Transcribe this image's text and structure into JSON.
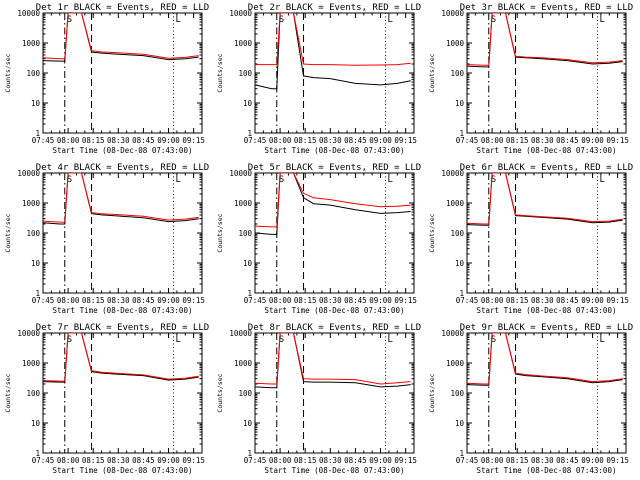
{
  "page": {
    "background": "#ffffff",
    "colors": {
      "events": "#000000",
      "lld": "#ff0000",
      "axes": "#000000"
    }
  },
  "chart_data": [
    {
      "type": "line",
      "title": "Det 1r BLACK = Events, RED = LLD",
      "xlabel": "Start Time (08-Dec-08 07:43:00)",
      "ylabel": "Counts/sec",
      "yscale": "log",
      "ylim": [
        1,
        10000
      ],
      "xlim": [
        "07:45",
        "09:20"
      ],
      "xticks": [
        "07:45",
        "08:00",
        "08:15",
        "08:30",
        "08:45",
        "09:00",
        "09:15"
      ],
      "yticks": [
        "1",
        "10",
        "100",
        "1000",
        "10000"
      ],
      "grid": false,
      "vlines": {
        "dashdot": "07:58",
        "dashed": "08:14",
        "dotted": "09:03"
      },
      "flags": [
        "S",
        "L"
      ],
      "x": [
        "07:45",
        "07:55",
        "07:58",
        "08:00",
        "08:04",
        "08:08",
        "08:14",
        "08:20",
        "08:30",
        "08:45",
        "09:00",
        "09:10",
        "09:18"
      ],
      "series": [
        {
          "name": "BLACK = Events",
          "color": "#000000",
          "values": [
            260,
            250,
            250,
            10000,
            10000,
            10000,
            500,
            460,
            420,
            380,
            280,
            300,
            340
          ]
        },
        {
          "name": "RED = LLD",
          "color": "#ff0000",
          "values": [
            320,
            300,
            300,
            10000,
            10000,
            10000,
            560,
            500,
            470,
            420,
            310,
            330,
            380
          ]
        }
      ]
    },
    {
      "type": "line",
      "title": "Det 2r BLACK = Events, RED = LLD",
      "xlabel": "Start Time (08-Dec-08 07:43:00)",
      "ylabel": "Counts/sec",
      "yscale": "log",
      "ylim": [
        1,
        10000
      ],
      "xlim": [
        "07:45",
        "09:20"
      ],
      "xticks": [
        "07:45",
        "08:00",
        "08:15",
        "08:30",
        "08:45",
        "09:00",
        "09:15"
      ],
      "yticks": [
        "1",
        "10",
        "100",
        "1000",
        "10000"
      ],
      "grid": false,
      "vlines": {
        "dashdot": "07:58",
        "dashed": "08:14",
        "dotted": "09:03"
      },
      "flags": [
        "S",
        "L"
      ],
      "x": [
        "07:45",
        "07:55",
        "07:58",
        "08:00",
        "08:04",
        "08:08",
        "08:14",
        "08:20",
        "08:30",
        "08:45",
        "09:00",
        "09:10",
        "09:18"
      ],
      "series": [
        {
          "name": "BLACK = Events",
          "color": "#000000",
          "values": [
            40,
            30,
            30,
            10000,
            10000,
            10000,
            80,
            70,
            65,
            45,
            40,
            45,
            55
          ]
        },
        {
          "name": "RED = LLD",
          "color": "#ff0000",
          "values": [
            190,
            190,
            190,
            10000,
            10000,
            10000,
            200,
            190,
            190,
            180,
            185,
            190,
            210
          ]
        }
      ]
    },
    {
      "type": "line",
      "title": "Det 3r BLACK = Events, RED = LLD",
      "xlabel": "Start Time (08-Dec-08 07:43:00)",
      "ylabel": "Counts/sec",
      "yscale": "log",
      "ylim": [
        1,
        10000
      ],
      "xlim": [
        "07:45",
        "09:20"
      ],
      "xticks": [
        "07:45",
        "08:00",
        "08:15",
        "08:30",
        "08:45",
        "09:00",
        "09:15"
      ],
      "yticks": [
        "1",
        "10",
        "100",
        "1000",
        "10000"
      ],
      "grid": false,
      "vlines": {
        "dashdot": "07:58",
        "dashed": "08:14",
        "dotted": "09:03"
      },
      "flags": [
        "S",
        "L"
      ],
      "x": [
        "07:45",
        "07:55",
        "07:58",
        "08:00",
        "08:04",
        "08:08",
        "08:14",
        "08:20",
        "08:30",
        "08:45",
        "09:00",
        "09:10",
        "09:18"
      ],
      "series": [
        {
          "name": "BLACK = Events",
          "color": "#000000",
          "values": [
            170,
            160,
            160,
            10000,
            10000,
            10000,
            340,
            320,
            300,
            260,
            200,
            210,
            240
          ]
        },
        {
          "name": "RED = LLD",
          "color": "#ff0000",
          "values": [
            190,
            180,
            180,
            10000,
            10000,
            10000,
            360,
            340,
            320,
            280,
            220,
            230,
            260
          ]
        }
      ]
    },
    {
      "type": "line",
      "title": "Det 4r BLACK = Events, RED = LLD",
      "xlabel": "Start Time (08-Dec-08 07:43:00)",
      "ylabel": "Counts/sec",
      "yscale": "log",
      "ylim": [
        1,
        10000
      ],
      "xlim": [
        "07:45",
        "09:20"
      ],
      "xticks": [
        "07:45",
        "08:00",
        "08:15",
        "08:30",
        "08:45",
        "09:00",
        "09:15"
      ],
      "yticks": [
        "1",
        "10",
        "100",
        "1000",
        "10000"
      ],
      "grid": false,
      "vlines": {
        "dashdot": "07:58",
        "dashed": "08:14",
        "dotted": "09:03"
      },
      "flags": [
        "S",
        "L"
      ],
      "x": [
        "07:45",
        "07:55",
        "07:58",
        "08:00",
        "08:04",
        "08:08",
        "08:14",
        "08:20",
        "08:30",
        "08:45",
        "09:00",
        "09:10",
        "09:18"
      ],
      "series": [
        {
          "name": "BLACK = Events",
          "color": "#000000",
          "values": [
            220,
            200,
            200,
            10000,
            10000,
            10000,
            440,
            400,
            370,
            320,
            240,
            260,
            300
          ]
        },
        {
          "name": "RED = LLD",
          "color": "#ff0000",
          "values": [
            250,
            230,
            230,
            10000,
            10000,
            10000,
            480,
            440,
            410,
            360,
            270,
            290,
            330
          ]
        }
      ]
    },
    {
      "type": "line",
      "title": "Det 5r BLACK = Events, RED = LLD",
      "xlabel": "Start Time (08-Dec-08 07:43:00)",
      "ylabel": "Counts/sec",
      "yscale": "log",
      "ylim": [
        1,
        10000
      ],
      "xlim": [
        "07:45",
        "09:20"
      ],
      "xticks": [
        "07:45",
        "08:00",
        "08:15",
        "08:30",
        "08:45",
        "09:00",
        "09:15"
      ],
      "yticks": [
        "1",
        "10",
        "100",
        "1000",
        "10000"
      ],
      "grid": false,
      "vlines": {
        "dashdot": "07:58",
        "dashed": "08:14",
        "dotted": "09:03"
      },
      "flags": [
        "S",
        "L"
      ],
      "x": [
        "07:45",
        "07:55",
        "07:58",
        "08:00",
        "08:04",
        "08:08",
        "08:14",
        "08:20",
        "08:30",
        "08:45",
        "09:00",
        "09:10",
        "09:18"
      ],
      "series": [
        {
          "name": "BLACK = Events",
          "color": "#000000",
          "values": [
            100,
            90,
            90,
            10000,
            10000,
            10000,
            1500,
            950,
            850,
            600,
            450,
            480,
            520
          ]
        },
        {
          "name": "RED = LLD",
          "color": "#ff0000",
          "values": [
            170,
            160,
            160,
            10000,
            10000,
            10000,
            2100,
            1500,
            1300,
            950,
            750,
            780,
            850
          ]
        }
      ]
    },
    {
      "type": "line",
      "title": "Det 6r BLACK = Events, RED = LLD",
      "xlabel": "Start Time (08-Dec-08 07:43:00)",
      "ylabel": "Counts/sec",
      "yscale": "log",
      "ylim": [
        1,
        10000
      ],
      "xlim": [
        "07:45",
        "09:20"
      ],
      "xticks": [
        "07:45",
        "08:00",
        "08:15",
        "08:30",
        "08:45",
        "09:00",
        "09:15"
      ],
      "yticks": [
        "1",
        "10",
        "100",
        "1000",
        "10000"
      ],
      "grid": false,
      "vlines": {
        "dashdot": "07:58",
        "dashed": "08:14",
        "dotted": "09:03"
      },
      "flags": [
        "S",
        "L"
      ],
      "x": [
        "07:45",
        "07:55",
        "07:58",
        "08:00",
        "08:04",
        "08:08",
        "08:14",
        "08:20",
        "08:30",
        "08:45",
        "09:00",
        "09:10",
        "09:18"
      ],
      "series": [
        {
          "name": "BLACK = Events",
          "color": "#000000",
          "values": [
            190,
            180,
            180,
            10000,
            10000,
            10000,
            380,
            360,
            330,
            290,
            220,
            230,
            270
          ]
        },
        {
          "name": "RED = LLD",
          "color": "#ff0000",
          "values": [
            210,
            200,
            200,
            10000,
            10000,
            10000,
            400,
            380,
            350,
            310,
            240,
            250,
            290
          ]
        }
      ]
    },
    {
      "type": "line",
      "title": "Det 7r BLACK = Events, RED = LLD",
      "xlabel": "Start Time (08-Dec-08 07:43:00)",
      "ylabel": "Counts/sec",
      "yscale": "log",
      "ylim": [
        1,
        10000
      ],
      "xlim": [
        "07:45",
        "09:20"
      ],
      "xticks": [
        "07:45",
        "08:00",
        "08:15",
        "08:30",
        "08:45",
        "09:00",
        "09:15"
      ],
      "yticks": [
        "1",
        "10",
        "100",
        "1000",
        "10000"
      ],
      "grid": false,
      "vlines": {
        "dashdot": "07:58",
        "dashed": "08:14",
        "dotted": "09:03"
      },
      "flags": [
        "S",
        "L"
      ],
      "x": [
        "07:45",
        "07:55",
        "07:58",
        "08:00",
        "08:04",
        "08:08",
        "08:14",
        "08:20",
        "08:30",
        "08:45",
        "09:00",
        "09:10",
        "09:18"
      ],
      "series": [
        {
          "name": "BLACK = Events",
          "color": "#000000",
          "values": [
            240,
            230,
            230,
            10000,
            10000,
            10000,
            520,
            460,
            420,
            380,
            270,
            290,
            340
          ]
        },
        {
          "name": "RED = LLD",
          "color": "#ff0000",
          "values": [
            260,
            250,
            250,
            10000,
            10000,
            10000,
            550,
            490,
            450,
            400,
            290,
            310,
            360
          ]
        }
      ]
    },
    {
      "type": "line",
      "title": "Det 8r BLACK = Events, RED = LLD",
      "xlabel": "Start Time (08-Dec-08 07:43:00)",
      "ylabel": "Counts/sec",
      "yscale": "log",
      "ylim": [
        1,
        10000
      ],
      "xlim": [
        "07:45",
        "09:20"
      ],
      "xticks": [
        "07:45",
        "08:00",
        "08:15",
        "08:30",
        "08:45",
        "09:00",
        "09:15"
      ],
      "yticks": [
        "1",
        "10",
        "100",
        "1000",
        "10000"
      ],
      "grid": false,
      "vlines": {
        "dashdot": "07:58",
        "dashed": "08:14",
        "dotted": "09:03"
      },
      "flags": [
        "S",
        "L"
      ],
      "x": [
        "07:45",
        "07:55",
        "07:58",
        "08:00",
        "08:04",
        "08:08",
        "08:14",
        "08:20",
        "08:30",
        "08:45",
        "09:00",
        "09:10",
        "09:18"
      ],
      "series": [
        {
          "name": "BLACK = Events",
          "color": "#000000",
          "values": [
            160,
            150,
            150,
            10000,
            10000,
            10000,
            240,
            230,
            230,
            220,
            160,
            170,
            190
          ]
        },
        {
          "name": "RED = LLD",
          "color": "#ff0000",
          "values": [
            210,
            200,
            200,
            10000,
            10000,
            10000,
            300,
            290,
            290,
            280,
            200,
            220,
            240
          ]
        }
      ]
    },
    {
      "type": "line",
      "title": "Det 9r BLACK = Events, RED = LLD",
      "xlabel": "Start Time (08-Dec-08 07:43:00)",
      "ylabel": "Counts/sec",
      "yscale": "log",
      "ylim": [
        1,
        10000
      ],
      "xlim": [
        "07:45",
        "09:20"
      ],
      "xticks": [
        "07:45",
        "08:00",
        "08:15",
        "08:30",
        "08:45",
        "09:00",
        "09:15"
      ],
      "yticks": [
        "1",
        "10",
        "100",
        "1000",
        "10000"
      ],
      "grid": false,
      "vlines": {
        "dashdot": "07:58",
        "dashed": "08:14",
        "dotted": "09:03"
      },
      "flags": [
        "S",
        "L"
      ],
      "x": [
        "07:45",
        "07:55",
        "07:58",
        "08:00",
        "08:04",
        "08:08",
        "08:14",
        "08:20",
        "08:30",
        "08:45",
        "09:00",
        "09:10",
        "09:18"
      ],
      "series": [
        {
          "name": "BLACK = Events",
          "color": "#000000",
          "values": [
            190,
            180,
            180,
            10000,
            10000,
            10000,
            430,
            380,
            350,
            300,
            220,
            240,
            280
          ]
        },
        {
          "name": "RED = LLD",
          "color": "#ff0000",
          "values": [
            210,
            200,
            200,
            10000,
            10000,
            10000,
            460,
            410,
            370,
            320,
            240,
            260,
            300
          ]
        }
      ]
    }
  ]
}
